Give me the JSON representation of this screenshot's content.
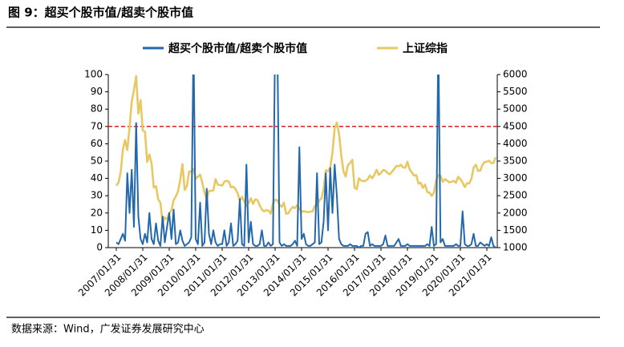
{
  "chart_data": {
    "type": "line",
    "title": "图 9：超买个股市值/超卖个股市值",
    "source": "数据来源：Wind，广发证券发展研究中心",
    "categories": [
      "2007/01/31",
      null,
      null,
      null,
      null,
      null,
      null,
      null,
      null,
      null,
      null,
      null,
      "2008/01/31",
      null,
      null,
      null,
      null,
      null,
      null,
      null,
      null,
      null,
      null,
      null,
      "2009/01/31",
      null,
      null,
      null,
      null,
      null,
      null,
      null,
      null,
      null,
      null,
      null,
      "2010/01/31",
      null,
      null,
      null,
      null,
      null,
      null,
      null,
      null,
      null,
      null,
      null,
      "2011/01/31",
      null,
      null,
      null,
      null,
      null,
      null,
      null,
      null,
      null,
      null,
      null,
      "2012/01/31",
      null,
      null,
      null,
      null,
      null,
      null,
      null,
      null,
      null,
      null,
      null,
      "2013/01/31",
      null,
      null,
      null,
      null,
      null,
      null,
      null,
      null,
      null,
      null,
      null,
      "2014/01/31",
      null,
      null,
      null,
      null,
      null,
      null,
      null,
      null,
      null,
      null,
      null,
      "2015/01/31",
      null,
      null,
      null,
      null,
      null,
      null,
      null,
      null,
      null,
      null,
      null,
      "2016/01/31",
      null,
      null,
      null,
      null,
      null,
      null,
      null,
      null,
      null,
      null,
      null,
      "2017/01/31",
      null,
      null,
      null,
      null,
      null,
      null,
      null,
      null,
      null,
      null,
      null,
      "2018/01/31",
      null,
      null,
      null,
      null,
      null,
      null,
      null,
      null,
      null,
      null,
      null,
      "2019/01/31",
      null,
      null,
      null,
      null,
      null,
      null,
      null,
      null,
      null,
      null,
      null,
      "2020/01/31",
      null,
      null,
      null,
      null,
      null,
      null,
      null,
      null,
      null,
      null,
      null,
      "2021/01/31",
      null,
      null,
      null,
      null
    ],
    "series": [
      {
        "name": "超买个股市值/超卖个股市值",
        "color": "#2368ad",
        "axis": "y",
        "values": [
          3,
          2,
          5,
          8,
          4,
          43,
          20,
          45,
          12,
          72,
          18,
          5,
          2,
          8,
          3,
          20,
          5,
          2,
          14,
          4,
          1,
          18,
          3,
          12,
          20,
          5,
          22,
          2,
          3,
          10,
          4,
          1,
          2,
          3,
          6,
          120,
          5,
          2,
          26,
          1,
          3,
          34,
          8,
          2,
          10,
          3,
          1,
          2,
          2,
          10,
          1,
          3,
          14,
          1,
          2,
          4,
          28,
          2,
          1,
          48,
          3,
          15,
          2,
          1,
          1,
          2,
          10,
          1,
          1,
          3,
          1,
          2,
          120,
          120,
          3,
          1,
          2,
          1,
          1,
          1,
          2,
          4,
          1,
          58,
          5,
          8,
          2,
          1,
          1,
          2,
          3,
          43,
          2,
          3,
          15,
          43,
          10,
          46,
          20,
          48,
          30,
          5,
          2,
          1,
          1,
          1,
          2,
          1,
          1,
          1,
          0,
          1,
          1,
          8,
          9,
          1,
          2,
          1,
          1,
          1,
          1,
          2,
          7,
          1,
          1,
          1,
          1,
          3,
          5,
          1,
          1,
          1,
          2,
          1,
          1,
          1,
          1,
          1,
          1,
          1,
          1,
          2,
          1,
          12,
          1,
          2,
          120,
          3,
          5,
          1,
          1,
          1,
          1,
          1,
          2,
          1,
          1,
          21,
          2,
          1,
          1,
          2,
          8,
          1,
          1,
          3,
          2,
          1,
          2,
          1,
          6,
          1,
          0
        ]
      },
      {
        "name": "上证综指",
        "color": "#e8c862",
        "axis": "y2",
        "values": [
          2786,
          2882,
          3183,
          3841,
          4109,
          3820,
          4471,
          5218,
          5552,
          5954,
          4871,
          5262,
          4383,
          4348,
          3473,
          3693,
          3433,
          2736,
          2775,
          2397,
          2293,
          1729,
          1871,
          1821,
          1991,
          2082,
          2373,
          2477,
          2633,
          2959,
          3412,
          2667,
          2779,
          3196,
          3195,
          3277,
          2989,
          3051,
          3110,
          2871,
          2592,
          2398,
          2638,
          2639,
          2656,
          2979,
          2820,
          2808,
          2790,
          2905,
          2928,
          2911,
          2743,
          2762,
          2701,
          2568,
          2359,
          2468,
          2333,
          2199,
          2293,
          2428,
          2263,
          2397,
          2373,
          2225,
          2103,
          2048,
          2086,
          2069,
          1980,
          2269,
          2385,
          2366,
          2237,
          2178,
          2301,
          1979,
          1994,
          2098,
          2175,
          2141,
          2221,
          2116,
          2033,
          2056,
          2033,
          2026,
          2039,
          2048,
          2201,
          2217,
          2364,
          2420,
          2683,
          3235,
          3210,
          3310,
          3748,
          4441,
          4612,
          4277,
          3664,
          3206,
          3053,
          3383,
          3445,
          3539,
          2738,
          2688,
          3004,
          2938,
          2917,
          2930,
          2979,
          3085,
          3005,
          3100,
          3250,
          3104,
          3159,
          3242,
          3223,
          3155,
          3117,
          3192,
          3273,
          3361,
          3349,
          3393,
          3317,
          3307,
          3481,
          3259,
          3169,
          3082,
          3095,
          2847,
          2876,
          2725,
          2821,
          2603,
          2588,
          2494,
          2585,
          2941,
          3091,
          3078,
          2899,
          2979,
          2933,
          2886,
          2905,
          2929,
          2872,
          3050,
          2977,
          2880,
          2750,
          2860,
          2852,
          2985,
          3310,
          3396,
          3218,
          3225,
          3392,
          3473,
          3483,
          3509,
          3442,
          3447,
          3615
        ]
      }
    ],
    "ylim": [
      0,
      100
    ],
    "yticks": [
      0,
      10,
      20,
      30,
      40,
      50,
      60,
      70,
      80,
      90,
      100
    ],
    "y2lim": [
      1000,
      6000
    ],
    "y2ticks": [
      1000,
      1500,
      2000,
      2500,
      3000,
      3500,
      4000,
      4500,
      5000,
      5500,
      6000
    ],
    "reference_line": {
      "value": 70,
      "axis": "y",
      "color": "#e02020"
    }
  }
}
